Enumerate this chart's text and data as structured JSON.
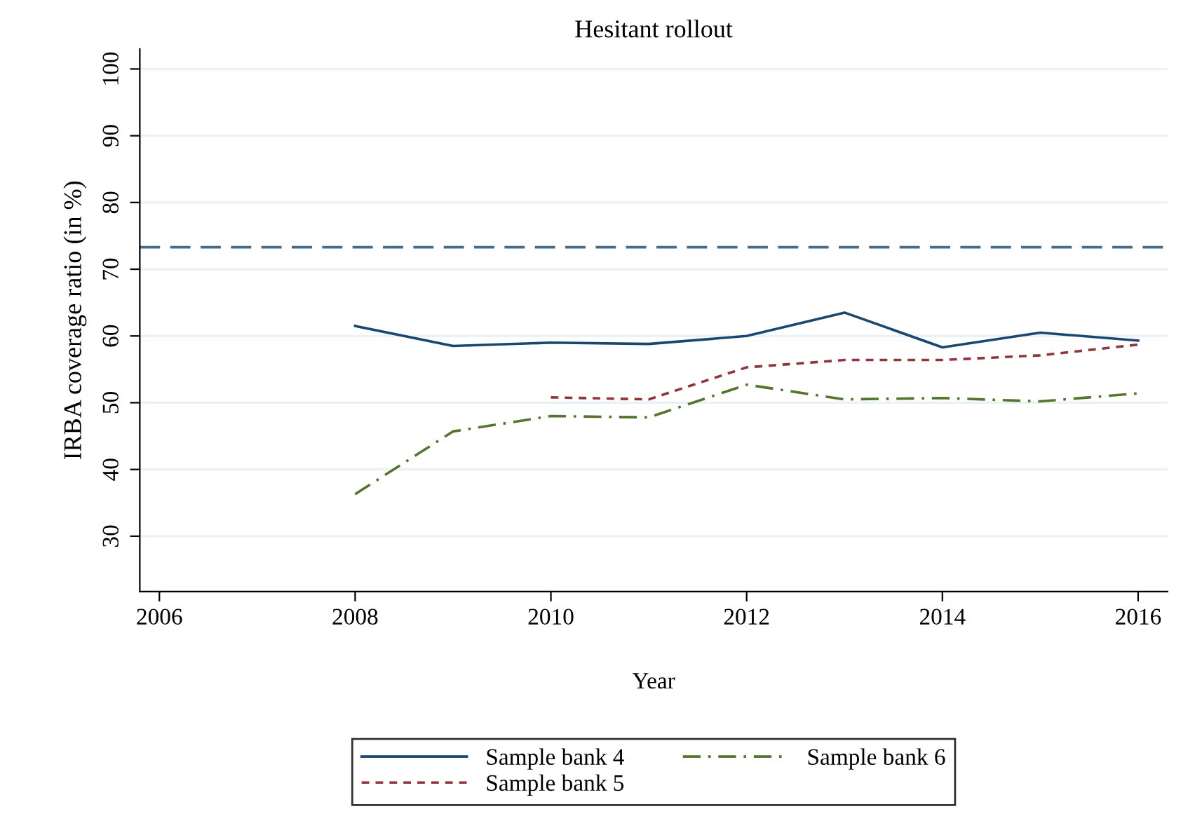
{
  "chart_data": {
    "type": "line",
    "title": "Hesitant rollout",
    "xlabel": "Year",
    "ylabel": "IRBA coverage ratio (in %)",
    "x": [
      2008,
      2009,
      2010,
      2011,
      2012,
      2013,
      2014,
      2015,
      2016
    ],
    "series": [
      {
        "name": "Sample bank 4",
        "color": "#1a476f",
        "line_style": "solid",
        "values": [
          61.5,
          58.5,
          59.0,
          58.8,
          60.0,
          63.5,
          58.3,
          60.5,
          59.3
        ]
      },
      {
        "name": "Sample bank 5",
        "color": "#90353b",
        "line_style": "dotted",
        "values": [
          null,
          null,
          50.8,
          50.5,
          55.3,
          56.4,
          56.4,
          57.1,
          58.7
        ]
      },
      {
        "name": "Sample bank 6",
        "color": "#55752f",
        "line_style": "dashdot",
        "values": [
          36.3,
          45.7,
          48.0,
          47.8,
          52.7,
          50.5,
          50.7,
          50.2,
          51.4
        ]
      }
    ],
    "xlim": [
      2005.8,
      2016.3
    ],
    "xticks": [
      2006,
      2008,
      2010,
      2012,
      2014,
      2016
    ],
    "ylim": [
      21.7,
      103
    ],
    "yticks": [
      30,
      40,
      50,
      60,
      70,
      80,
      90,
      100
    ],
    "ref_lines": [
      {
        "axis": "y",
        "value": 73.3,
        "label": null,
        "color": "#456b8a",
        "line_style": "dashed"
      }
    ],
    "grid": "y",
    "legend": "bottom",
    "marker": "none"
  }
}
